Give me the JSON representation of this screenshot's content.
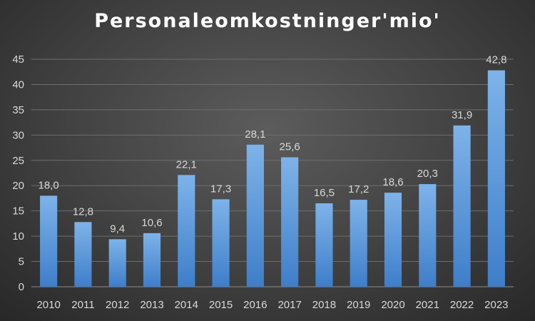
{
  "chart_data": {
    "type": "bar",
    "title": "Personaleomkostninger'mio'",
    "categories": [
      "2010",
      "2011",
      "2012",
      "2013",
      "2014",
      "2015",
      "2016",
      "2017",
      "2018",
      "2019",
      "2020",
      "2021",
      "2022",
      "2023"
    ],
    "values": [
      18.0,
      12.8,
      9.4,
      10.6,
      22.1,
      17.3,
      28.1,
      25.6,
      16.5,
      17.2,
      18.6,
      20.3,
      31.9,
      42.8
    ],
    "data_labels": [
      "18,0",
      "12,8",
      "9,4",
      "10,6",
      "22,1",
      "17,3",
      "28,1",
      "25,6",
      "16,5",
      "17,2",
      "18,6",
      "20,3",
      "31,9",
      "42,8"
    ],
    "y_ticks": [
      0,
      5,
      10,
      15,
      20,
      25,
      30,
      35,
      40,
      45
    ],
    "ylim": [
      0,
      45
    ],
    "xlabel": "",
    "ylabel": "",
    "grid": true,
    "legend": "none",
    "colors": {
      "bar_top": "#7eb3e9",
      "bar_bottom": "#3e7ec9",
      "grid": "#6e6e6e",
      "axis": "#8c8c8c",
      "text": "#d9d9d9",
      "title": "#ffffff"
    }
  }
}
